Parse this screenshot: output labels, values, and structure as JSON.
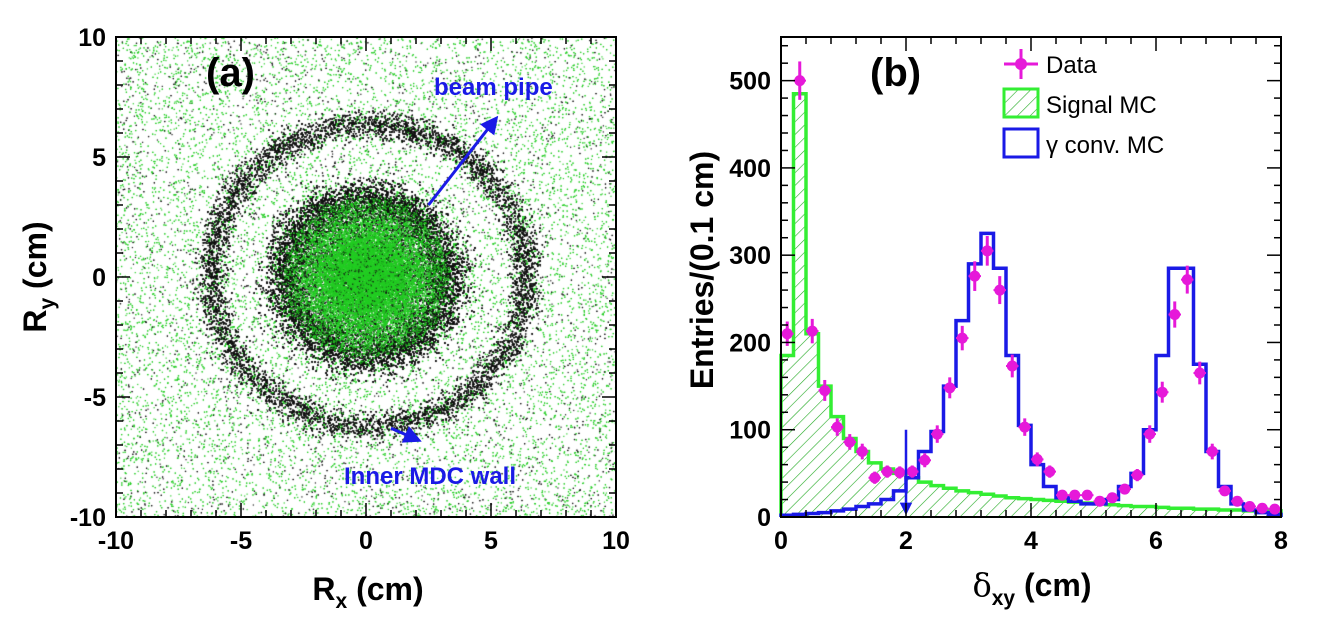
{
  "chart_data": [
    {
      "type": "scatter",
      "panel_label": "(a)",
      "xlabel": "R",
      "xlabel_sub": "x",
      "xlabel_unit": "(cm)",
      "ylabel": "R",
      "ylabel_sub": "y",
      "ylabel_unit": "(cm)",
      "xlim": [
        -10,
        10
      ],
      "ylim": [
        -10,
        10
      ],
      "xticks": [
        "-10",
        "-5",
        "0",
        "5",
        "10"
      ],
      "yticks": [
        "-10",
        "-5",
        "0",
        "5",
        "10"
      ],
      "structures": [
        {
          "name": "core",
          "shape": "gaussian",
          "center": [
            0,
            0
          ],
          "sigma": 1.2
        },
        {
          "name": "inner MDC wall",
          "shape": "ring",
          "center": [
            0,
            0
          ],
          "radius": 3.3,
          "width": 0.9
        },
        {
          "name": "beam pipe",
          "shape": "ring",
          "center": [
            0.1,
            0.1
          ],
          "radius": 6.3,
          "width": 0.6
        },
        {
          "name": "uniform background",
          "shape": "uniform"
        }
      ],
      "annotations": [
        {
          "text": "beam pipe",
          "color": "#1a1ae6",
          "arrow_from": [
            2.5,
            3.0
          ],
          "arrow_to": [
            5.2,
            6.6
          ]
        },
        {
          "text": "Inner MDC wall",
          "color": "#1a1ae6",
          "arrow_from": [
            1.0,
            -6.3
          ],
          "arrow_to": [
            2.1,
            -6.8
          ]
        }
      ],
      "colors": {
        "dense": "#111111",
        "sparse": "#22cc22"
      }
    },
    {
      "type": "bar",
      "panel_label": "(b)",
      "xlabel": "δ",
      "xlabel_sub": "xy",
      "xlabel_unit": "(cm)",
      "ylabel": "Entries/(0.1 cm)",
      "xlim": [
        0,
        8
      ],
      "ylim": [
        0,
        550
      ],
      "xticks": [
        "0",
        "2",
        "4",
        "6",
        "8"
      ],
      "yticks": [
        "0",
        "100",
        "200",
        "300",
        "400",
        "500"
      ],
      "bin_edges": [
        0,
        0.2,
        0.4,
        0.6,
        0.8,
        1.0,
        1.2,
        1.4,
        1.6,
        1.8,
        2.0,
        2.2,
        2.4,
        2.6,
        2.8,
        3.0,
        3.2,
        3.4,
        3.6,
        3.8,
        4.0,
        4.2,
        4.4,
        4.6,
        4.8,
        5.0,
        5.2,
        5.4,
        5.6,
        5.8,
        6.0,
        6.2,
        6.4,
        6.6,
        6.8,
        7.0,
        7.2,
        7.4,
        7.6,
        7.8,
        8.0
      ],
      "series": [
        {
          "name": "Data",
          "style": "points",
          "color": "#e619d9",
          "x": [
            0.1,
            0.3,
            0.5,
            0.7,
            0.9,
            1.1,
            1.3,
            1.5,
            1.7,
            1.9,
            2.1,
            2.3,
            2.5,
            2.7,
            2.9,
            3.1,
            3.3,
            3.5,
            3.7,
            3.9,
            4.1,
            4.3,
            4.5,
            4.7,
            4.9,
            5.1,
            5.3,
            5.5,
            5.7,
            5.9,
            6.1,
            6.3,
            6.5,
            6.7,
            6.9,
            7.1,
            7.3,
            7.5,
            7.7,
            7.9
          ],
          "values": [
            210,
            500,
            213,
            145,
            103,
            86,
            75,
            45,
            52,
            51,
            52,
            65,
            95,
            148,
            205,
            276,
            305,
            260,
            173,
            103,
            66,
            52,
            25,
            25,
            25,
            18,
            22,
            32,
            48,
            95,
            143,
            232,
            272,
            165,
            75,
            30,
            18,
            12,
            10,
            9
          ],
          "errors": [
            14,
            22,
            14,
            12,
            10,
            9,
            9,
            7,
            7,
            7,
            7,
            8,
            10,
            12,
            14,
            17,
            17,
            16,
            13,
            10,
            8,
            7,
            5,
            5,
            5,
            4,
            5,
            6,
            7,
            10,
            12,
            15,
            16,
            13,
            9,
            5,
            4,
            3,
            3,
            3
          ]
        },
        {
          "name": "Signal MC",
          "style": "hatched-hist",
          "color": "#33ee33",
          "values": [
            185,
            485,
            210,
            150,
            115,
            90,
            75,
            62,
            55,
            50,
            45,
            40,
            36,
            33,
            30,
            28,
            26,
            24,
            22,
            21,
            20,
            19,
            18,
            17,
            16,
            15,
            14,
            13,
            12,
            12,
            11,
            10,
            10,
            9,
            9,
            8,
            8,
            7,
            7,
            7
          ]
        },
        {
          "name": "γ conv. MC",
          "style": "step-hist",
          "color": "#1a1ae6",
          "values": [
            2,
            3,
            4,
            5,
            7,
            9,
            12,
            15,
            20,
            30,
            45,
            75,
            98,
            150,
            225,
            290,
            325,
            285,
            185,
            105,
            60,
            35,
            22,
            18,
            15,
            15,
            20,
            35,
            50,
            100,
            185,
            285,
            285,
            175,
            75,
            35,
            15,
            8,
            5,
            3
          ]
        }
      ],
      "legend": [
        "Data",
        "Signal MC",
        "γ conv. MC"
      ],
      "cut_arrow": {
        "x": 2.0,
        "from_y": 100,
        "to_y": 5
      }
    }
  ]
}
